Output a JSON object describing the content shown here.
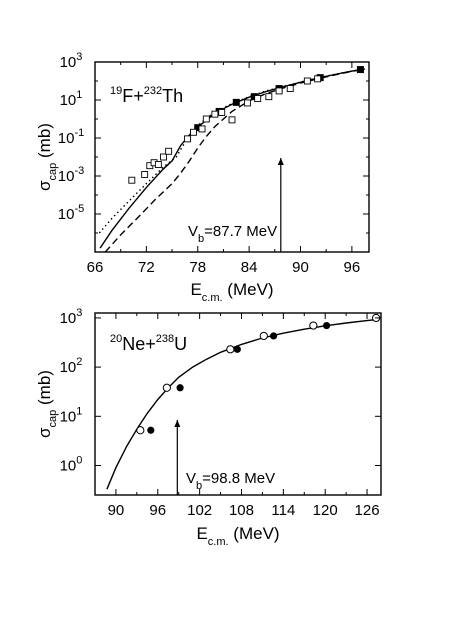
{
  "chart_data": [
    {
      "type": "scatter",
      "reaction": {
        "a1": "19",
        "e1": "F+",
        "a2": "232",
        "e2": "Th"
      },
      "xlabel": {
        "main": "E",
        "sub": "c.m.",
        "unit": " (MeV)"
      },
      "ylabel": {
        "main": "σ",
        "sub": "cap",
        "unit": " (mb)"
      },
      "xlim": [
        66,
        98
      ],
      "ylim_log10": [
        -7,
        3
      ],
      "yscale": "log",
      "xticks": [
        "66",
        "72",
        "78",
        "84",
        "90",
        "96"
      ],
      "yticks": [
        {
          "base": "10",
          "exp": "3",
          "log": 3
        },
        {
          "base": "10",
          "exp": "1",
          "log": 1
        },
        {
          "base": "10",
          "exp": "-1",
          "log": -1
        },
        {
          "base": "10",
          "exp": "-3",
          "log": -3
        },
        {
          "base": "10",
          "exp": "-5",
          "log": -5
        }
      ],
      "vb": {
        "label_main": "V",
        "label_sub": "b",
        "label_rest": "=87.7 MeV",
        "value": 87.7
      },
      "series": [
        {
          "marker": "filled-square",
          "x": [
            78.0,
            80.5,
            82.5,
            84.6,
            87.5,
            92.3,
            97.0
          ],
          "y": [
            0.35,
            2.5,
            7.5,
            15,
            40,
            150,
            400
          ]
        },
        {
          "marker": "open-square",
          "x": [
            70.3,
            71.8,
            72.4,
            72.9,
            73.4,
            74.0,
            74.6,
            76.8,
            77.5,
            78.5,
            79.0,
            80.0,
            80.8,
            82.0,
            83.8,
            85.0,
            86.3,
            87.5,
            88.8,
            90.8,
            92.0
          ],
          "y": [
            0.0006,
            0.0012,
            0.0035,
            0.005,
            0.004,
            0.01,
            0.02,
            0.09,
            0.2,
            0.3,
            1.0,
            1.8,
            2.2,
            0.9,
            7,
            12,
            15,
            30,
            40,
            100,
            130
          ]
        },
        {
          "style": "solid",
          "x": [
            66.6,
            68,
            70,
            72,
            74,
            75,
            76,
            77,
            78,
            79,
            80,
            82,
            84,
            86,
            88,
            90,
            92,
            94,
            96,
            97.5
          ],
          "y": [
            1.6e-07,
            1.4e-06,
            2.1e-05,
            0.00025,
            0.0024,
            0.0063,
            0.04,
            0.14,
            0.38,
            0.85,
            2.0,
            6.0,
            14,
            28,
            50,
            85,
            140,
            220,
            330,
            420
          ]
        },
        {
          "style": "dotted",
          "x": [
            66.5,
            68,
            70,
            72,
            74,
            75.5,
            77,
            78,
            79,
            80,
            82,
            84,
            86,
            88,
            90,
            92,
            94,
            96,
            97.5
          ],
          "y": [
            1e-06,
            6e-06,
            5e-05,
            0.0004,
            0.003,
            0.01,
            0.14,
            0.45,
            1.1,
            2.3,
            6.5,
            15,
            30,
            52,
            88,
            145,
            225,
            335,
            425
          ]
        },
        {
          "style": "dashed",
          "x": [
            67.2,
            69,
            71,
            73,
            75,
            76,
            77,
            78,
            79,
            80,
            82,
            84,
            86,
            88,
            90,
            92,
            94,
            96,
            97.5
          ],
          "y": [
            1e-07,
            8e-07,
            6.5e-06,
            5.5e-05,
            0.0004,
            0.0014,
            0.006,
            0.03,
            0.12,
            0.4,
            2.5,
            9,
            22,
            43,
            78,
            130,
            210,
            320,
            415
          ]
        }
      ]
    },
    {
      "type": "scatter",
      "reaction": {
        "a1": "20",
        "e1": "Ne+",
        "a2": "238",
        "e2": "U"
      },
      "xlabel": {
        "main": "E",
        "sub": "c.m.",
        "unit": " (MeV)"
      },
      "ylabel": {
        "main": "σ",
        "sub": "cap",
        "unit": " (mb)"
      },
      "xlim": [
        87,
        128
      ],
      "ylim_log10": [
        -0.6,
        3.1
      ],
      "yscale": "log",
      "xticks": [
        "90",
        "96",
        "102",
        "108",
        "114",
        "120",
        "126"
      ],
      "yticks": [
        {
          "base": "10",
          "exp": "3",
          "log": 3
        },
        {
          "base": "10",
          "exp": "2",
          "log": 2
        },
        {
          "base": "10",
          "exp": "1",
          "log": 1
        },
        {
          "base": "10",
          "exp": "0",
          "log": 0
        }
      ],
      "vb": {
        "label_main": "V",
        "label_sub": "b",
        "label_rest": "=98.8 MeV",
        "value": 98.8
      },
      "series": [
        {
          "marker": "open-circle",
          "x": [
            93.5,
            97.3,
            106.4,
            111.2,
            118.3,
            127.3
          ],
          "y": [
            5.2,
            38,
            230,
            430,
            700,
            1000
          ]
        },
        {
          "marker": "filled-circle",
          "x": [
            95.0,
            99.2,
            107.4,
            112.6,
            120.2
          ],
          "y": [
            5.2,
            38,
            230,
            430,
            700
          ]
        },
        {
          "style": "solid",
          "x": [
            88.7,
            90,
            91.5,
            93,
            94.5,
            96,
            97.5,
            99,
            101,
            103,
            105,
            108,
            111,
            114,
            117,
            120,
            123,
            126,
            127.5
          ],
          "y": [
            0.33,
            0.9,
            2.4,
            5.5,
            11.5,
            22,
            38,
            62,
            100,
            145,
            200,
            290,
            390,
            490,
            590,
            690,
            790,
            880,
            930
          ]
        }
      ]
    }
  ]
}
